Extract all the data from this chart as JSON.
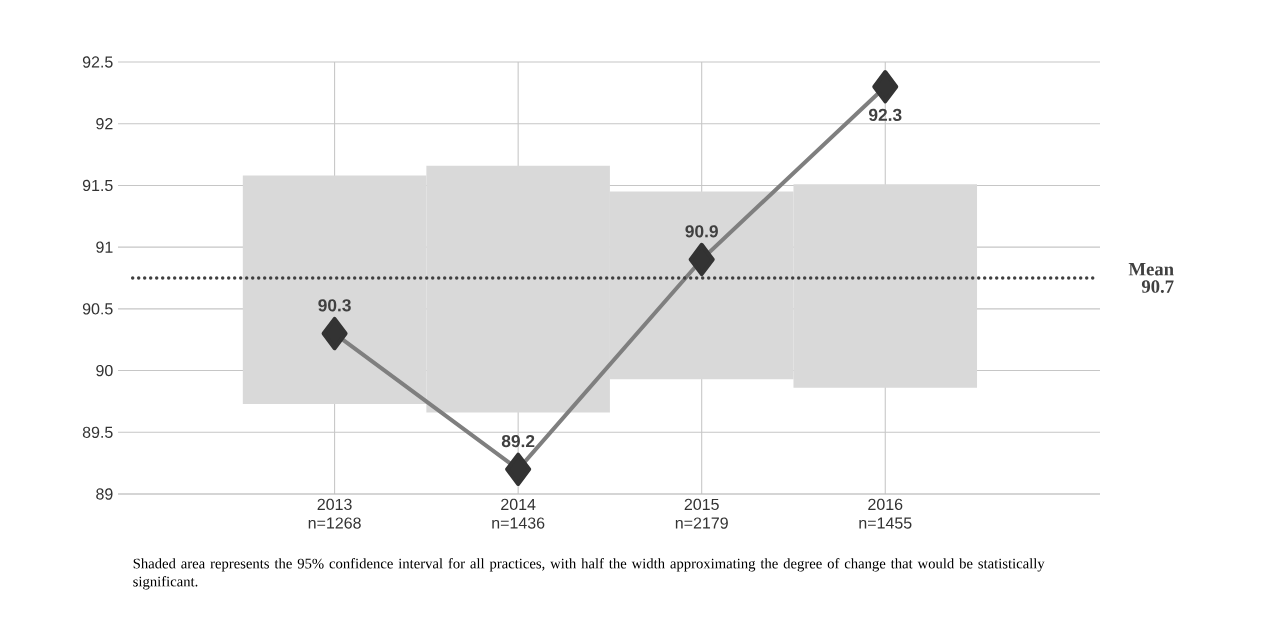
{
  "chart_data": {
    "type": "line",
    "categories": [
      "2013 n=1268",
      "2014 n=1436",
      "2015 n=2179",
      "2016 n=1455"
    ],
    "series": [
      {
        "type": "bar",
        "color": "#d9d9d9",
        "base": [
          89.73,
          89.66,
          89.93,
          89.86
        ],
        "values": [
          1.85,
          2.0,
          1.52,
          1.65
        ]
      },
      {
        "color": "#7f7f7f",
        "values": [
          90.3,
          89.2,
          90.9,
          92.3
        ],
        "value_labels": [
          "90.3",
          "89.2",
          "90.9",
          "92.3"
        ],
        "marker": "diamond"
      }
    ],
    "ylim": [
      89,
      92.5
    ],
    "yticks": [
      89,
      89.5,
      90,
      90.5,
      91,
      91.5,
      92,
      92.5
    ],
    "grid": true,
    "ref_lines": [
      {
        "axis": "y",
        "value": 90.75,
        "label": "Mean 90.7",
        "color": "#404040",
        "line_style": "dotted"
      }
    ],
    "annotations": [
      "Shaded area represents the 95% confidence interval for all practices, with half the width approximating the degree of change that would be statistically significant."
    ]
  }
}
